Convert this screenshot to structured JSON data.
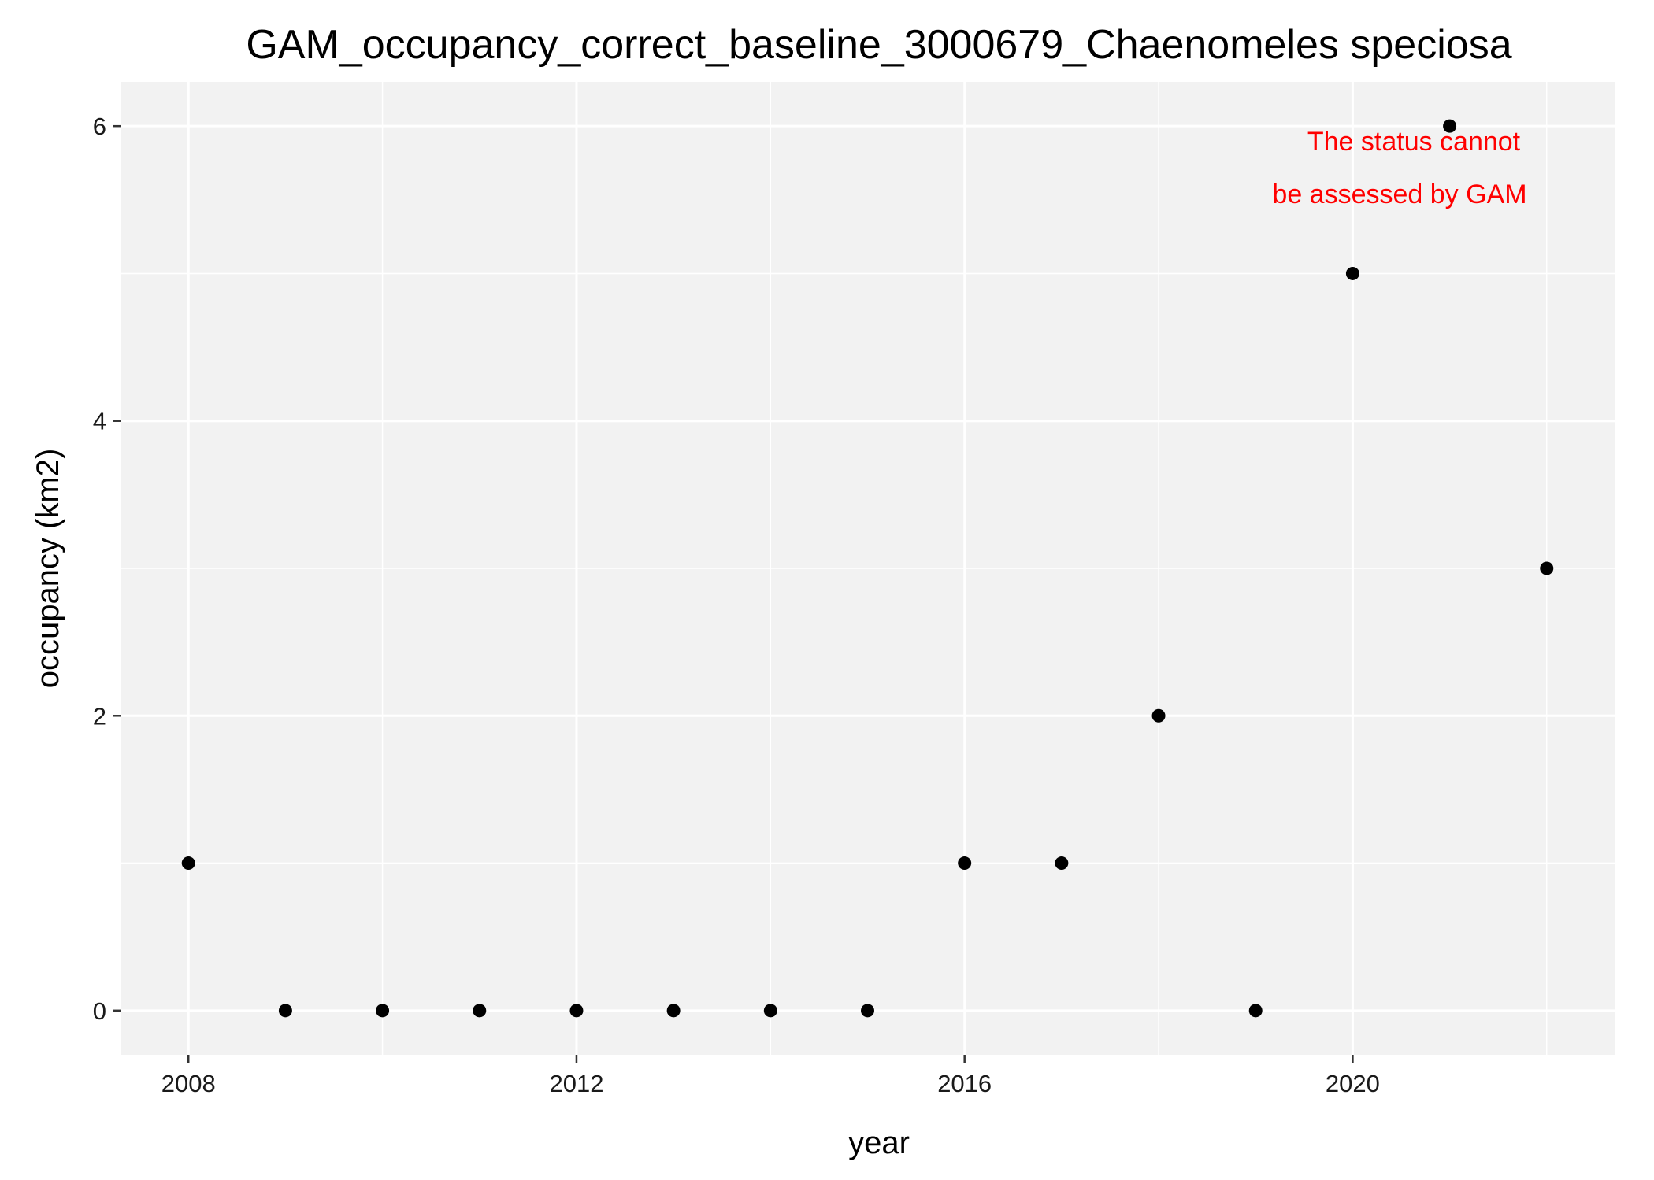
{
  "chart_data": {
    "type": "scatter",
    "title": "GAM_occupancy_correct_baseline_3000679_Chaenomeles speciosa",
    "xlabel": "year",
    "ylabel": "occupancy (km2)",
    "x": [
      2008,
      2009,
      2010,
      2011,
      2012,
      2013,
      2014,
      2015,
      2016,
      2017,
      2018,
      2019,
      2020,
      2021,
      2022
    ],
    "y": [
      1,
      0,
      0,
      0,
      0,
      0,
      0,
      0,
      1,
      1,
      2,
      0,
      5,
      6,
      3
    ],
    "xlim": [
      2007.3,
      2022.7
    ],
    "ylim": [
      -0.3,
      6.3
    ],
    "x_ticks": [
      2008,
      2012,
      2016,
      2020
    ],
    "y_ticks": [
      0,
      2,
      4,
      6
    ],
    "grid": true,
    "point_color": "#000000",
    "panel_background": "#f2f2f2",
    "annotation": {
      "lines": [
        "The status cannot",
        "be assessed by GAM"
      ],
      "color": "#ff0000"
    }
  }
}
